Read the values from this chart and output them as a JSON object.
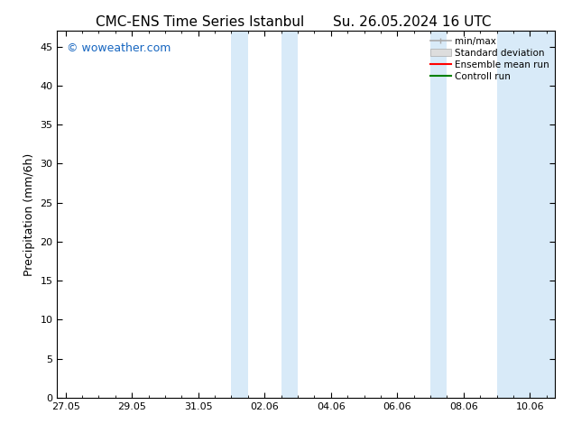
{
  "title_left": "CMC-ENS Time Series Istanbul",
  "title_right": "Su. 26.05.2024 16 UTC",
  "ylabel": "Precipitation (mm/6h)",
  "watermark": "© woweather.com",
  "watermark_color": "#1565C0",
  "ylim": [
    0,
    47
  ],
  "yticks": [
    0,
    5,
    10,
    15,
    20,
    25,
    30,
    35,
    40,
    45
  ],
  "xtick_labels": [
    "27.05",
    "29.05",
    "31.05",
    "02.06",
    "04.06",
    "06.06",
    "08.06",
    "10.06"
  ],
  "xtick_positions": [
    0,
    2,
    4,
    6,
    8,
    10,
    12,
    14
  ],
  "xlim": [
    -0.25,
    14.75
  ],
  "shaded_regions": [
    {
      "x_start": 5.0,
      "x_end": 5.5
    },
    {
      "x_start": 6.5,
      "x_end": 7.0
    },
    {
      "x_start": 11.0,
      "x_end": 11.5
    },
    {
      "x_start": 13.0,
      "x_end": 14.75
    }
  ],
  "shade_color": "#D8EAF8",
  "legend_labels": [
    "min/max",
    "Standard deviation",
    "Ensemble mean run",
    "Controll run"
  ],
  "legend_colors": [
    "#aaaaaa",
    "#cccccc",
    "#ff0000",
    "#008000"
  ],
  "background_color": "#ffffff",
  "title_fontsize": 11,
  "tick_fontsize": 8,
  "ylabel_fontsize": 9,
  "watermark_fontsize": 9
}
